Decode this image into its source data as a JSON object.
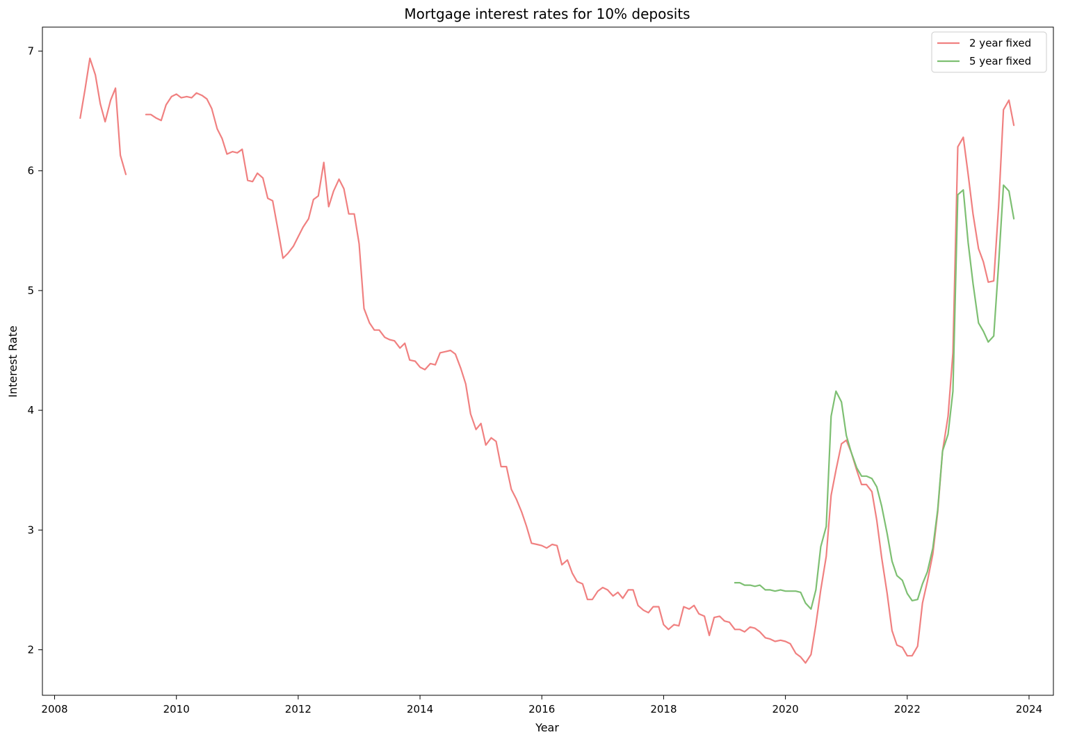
{
  "chart_data": {
    "type": "line",
    "title": "Mortgage interest rates for 10% deposits",
    "xlabel": "Year",
    "ylabel": "Interest Rate",
    "xlim": [
      2007.8,
      2024.4
    ],
    "ylim": [
      1.62,
      7.2
    ],
    "xticks": [
      2008,
      2010,
      2012,
      2014,
      2016,
      2018,
      2020,
      2022,
      2024
    ],
    "xtick_labels": [
      "2008",
      "2010",
      "2012",
      "2014",
      "2016",
      "2018",
      "2020",
      "2022",
      "2024"
    ],
    "yticks": [
      2,
      3,
      4,
      5,
      6,
      7
    ],
    "ytick_labels": [
      "2",
      "3",
      "4",
      "5",
      "6",
      "7"
    ],
    "grid": false,
    "legend": {
      "position": "top-right"
    },
    "series": [
      {
        "name": "2 year fixed",
        "color": "#f08080",
        "segments": [
          [
            [
              2008.42,
              6.44
            ],
            [
              2008.5,
              6.68
            ],
            [
              2008.58,
              6.94
            ],
            [
              2008.67,
              6.8
            ],
            [
              2008.75,
              6.56
            ],
            [
              2008.83,
              6.41
            ],
            [
              2008.92,
              6.59
            ],
            [
              2009.0,
              6.69
            ],
            [
              2009.08,
              6.13
            ],
            [
              2009.17,
              5.97
            ]
          ],
          [
            [
              2009.5,
              6.47
            ],
            [
              2009.58,
              6.47
            ],
            [
              2009.67,
              6.44
            ],
            [
              2009.75,
              6.42
            ],
            [
              2009.83,
              6.55
            ],
            [
              2009.92,
              6.62
            ],
            [
              2010.0,
              6.64
            ],
            [
              2010.08,
              6.61
            ],
            [
              2010.17,
              6.62
            ],
            [
              2010.25,
              6.61
            ],
            [
              2010.33,
              6.65
            ],
            [
              2010.42,
              6.63
            ],
            [
              2010.5,
              6.6
            ],
            [
              2010.58,
              6.52
            ],
            [
              2010.67,
              6.35
            ],
            [
              2010.75,
              6.27
            ],
            [
              2010.83,
              6.14
            ],
            [
              2010.92,
              6.16
            ],
            [
              2011.0,
              6.15
            ],
            [
              2011.08,
              6.18
            ],
            [
              2011.17,
              5.92
            ],
            [
              2011.25,
              5.91
            ],
            [
              2011.33,
              5.98
            ],
            [
              2011.42,
              5.94
            ],
            [
              2011.5,
              5.77
            ],
            [
              2011.58,
              5.75
            ],
            [
              2011.67,
              5.5
            ],
            [
              2011.75,
              5.27
            ],
            [
              2011.83,
              5.31
            ],
            [
              2011.92,
              5.37
            ],
            [
              2012.0,
              5.45
            ],
            [
              2012.08,
              5.53
            ],
            [
              2012.17,
              5.6
            ],
            [
              2012.25,
              5.76
            ],
            [
              2012.33,
              5.79
            ],
            [
              2012.42,
              6.07
            ],
            [
              2012.5,
              5.7
            ],
            [
              2012.58,
              5.83
            ],
            [
              2012.67,
              5.93
            ],
            [
              2012.75,
              5.85
            ],
            [
              2012.83,
              5.64
            ],
            [
              2012.92,
              5.64
            ],
            [
              2013.0,
              5.39
            ],
            [
              2013.08,
              4.85
            ],
            [
              2013.17,
              4.73
            ],
            [
              2013.25,
              4.67
            ],
            [
              2013.33,
              4.67
            ],
            [
              2013.42,
              4.61
            ],
            [
              2013.5,
              4.59
            ],
            [
              2013.58,
              4.58
            ],
            [
              2013.67,
              4.52
            ],
            [
              2013.75,
              4.56
            ],
            [
              2013.83,
              4.42
            ],
            [
              2013.92,
              4.41
            ],
            [
              2014.0,
              4.36
            ],
            [
              2014.08,
              4.34
            ],
            [
              2014.17,
              4.39
            ],
            [
              2014.25,
              4.38
            ],
            [
              2014.33,
              4.48
            ],
            [
              2014.42,
              4.49
            ],
            [
              2014.5,
              4.5
            ],
            [
              2014.58,
              4.47
            ],
            [
              2014.67,
              4.35
            ],
            [
              2014.75,
              4.22
            ],
            [
              2014.83,
              3.97
            ],
            [
              2014.92,
              3.84
            ],
            [
              2015.0,
              3.89
            ],
            [
              2015.08,
              3.71
            ],
            [
              2015.17,
              3.77
            ],
            [
              2015.25,
              3.74
            ],
            [
              2015.33,
              3.53
            ],
            [
              2015.42,
              3.53
            ],
            [
              2015.5,
              3.34
            ],
            [
              2015.58,
              3.26
            ],
            [
              2015.67,
              3.15
            ],
            [
              2015.75,
              3.03
            ],
            [
              2015.83,
              2.89
            ],
            [
              2015.92,
              2.88
            ],
            [
              2016.0,
              2.87
            ],
            [
              2016.08,
              2.85
            ],
            [
              2016.17,
              2.88
            ],
            [
              2016.25,
              2.87
            ],
            [
              2016.33,
              2.71
            ],
            [
              2016.42,
              2.75
            ],
            [
              2016.5,
              2.64
            ],
            [
              2016.58,
              2.57
            ],
            [
              2016.67,
              2.55
            ],
            [
              2016.75,
              2.42
            ],
            [
              2016.83,
              2.42
            ],
            [
              2016.92,
              2.49
            ],
            [
              2017.0,
              2.52
            ],
            [
              2017.08,
              2.5
            ],
            [
              2017.17,
              2.45
            ],
            [
              2017.25,
              2.48
            ],
            [
              2017.33,
              2.43
            ],
            [
              2017.42,
              2.5
            ],
            [
              2017.5,
              2.5
            ],
            [
              2017.58,
              2.37
            ],
            [
              2017.67,
              2.33
            ],
            [
              2017.75,
              2.31
            ],
            [
              2017.83,
              2.36
            ],
            [
              2017.92,
              2.36
            ],
            [
              2018.0,
              2.21
            ],
            [
              2018.08,
              2.17
            ],
            [
              2018.17,
              2.21
            ],
            [
              2018.25,
              2.2
            ],
            [
              2018.33,
              2.36
            ],
            [
              2018.42,
              2.34
            ],
            [
              2018.5,
              2.37
            ],
            [
              2018.58,
              2.3
            ],
            [
              2018.67,
              2.28
            ],
            [
              2018.75,
              2.12
            ],
            [
              2018.83,
              2.27
            ],
            [
              2018.92,
              2.28
            ],
            [
              2019.0,
              2.24
            ],
            [
              2019.08,
              2.23
            ],
            [
              2019.17,
              2.17
            ],
            [
              2019.25,
              2.17
            ],
            [
              2019.33,
              2.15
            ],
            [
              2019.42,
              2.19
            ],
            [
              2019.5,
              2.18
            ],
            [
              2019.58,
              2.15
            ],
            [
              2019.67,
              2.1
            ],
            [
              2019.75,
              2.09
            ],
            [
              2019.83,
              2.07
            ],
            [
              2019.92,
              2.08
            ],
            [
              2020.0,
              2.07
            ],
            [
              2020.08,
              2.05
            ],
            [
              2020.17,
              1.97
            ],
            [
              2020.25,
              1.94
            ],
            [
              2020.33,
              1.89
            ],
            [
              2020.42,
              1.96
            ],
            [
              2020.5,
              2.21
            ],
            [
              2020.58,
              2.5
            ],
            [
              2020.67,
              2.78
            ],
            [
              2020.75,
              3.29
            ],
            [
              2020.83,
              3.5
            ],
            [
              2020.92,
              3.72
            ],
            [
              2021.0,
              3.75
            ],
            [
              2021.08,
              3.65
            ],
            [
              2021.17,
              3.5
            ],
            [
              2021.25,
              3.38
            ],
            [
              2021.33,
              3.38
            ],
            [
              2021.42,
              3.32
            ],
            [
              2021.5,
              3.08
            ],
            [
              2021.58,
              2.77
            ],
            [
              2021.67,
              2.47
            ],
            [
              2021.75,
              2.16
            ],
            [
              2021.83,
              2.04
            ],
            [
              2021.92,
              2.02
            ],
            [
              2022.0,
              1.95
            ],
            [
              2022.08,
              1.95
            ],
            [
              2022.17,
              2.03
            ],
            [
              2022.25,
              2.39
            ],
            [
              2022.33,
              2.57
            ],
            [
              2022.42,
              2.8
            ],
            [
              2022.5,
              3.15
            ],
            [
              2022.58,
              3.66
            ],
            [
              2022.67,
              3.95
            ],
            [
              2022.75,
              4.48
            ],
            [
              2022.83,
              6.2
            ],
            [
              2022.92,
              6.28
            ],
            [
              2023.0,
              5.97
            ],
            [
              2023.08,
              5.64
            ],
            [
              2023.17,
              5.35
            ],
            [
              2023.25,
              5.24
            ],
            [
              2023.33,
              5.07
            ],
            [
              2023.42,
              5.08
            ],
            [
              2023.5,
              5.7
            ],
            [
              2023.58,
              6.51
            ],
            [
              2023.67,
              6.59
            ],
            [
              2023.75,
              6.38
            ]
          ]
        ]
      },
      {
        "name": "5 year fixed",
        "color": "#7dbf72",
        "segments": [
          [
            [
              2019.17,
              2.56
            ],
            [
              2019.25,
              2.56
            ],
            [
              2019.33,
              2.54
            ],
            [
              2019.42,
              2.54
            ],
            [
              2019.5,
              2.53
            ],
            [
              2019.58,
              2.54
            ],
            [
              2019.67,
              2.5
            ],
            [
              2019.75,
              2.5
            ],
            [
              2019.83,
              2.49
            ],
            [
              2019.92,
              2.5
            ],
            [
              2020.0,
              2.49
            ],
            [
              2020.08,
              2.49
            ],
            [
              2020.17,
              2.49
            ],
            [
              2020.25,
              2.48
            ],
            [
              2020.33,
              2.39
            ],
            [
              2020.42,
              2.34
            ],
            [
              2020.5,
              2.5
            ],
            [
              2020.58,
              2.86
            ],
            [
              2020.67,
              3.03
            ],
            [
              2020.75,
              3.95
            ],
            [
              2020.83,
              4.16
            ],
            [
              2020.92,
              4.07
            ],
            [
              2021.0,
              3.79
            ],
            [
              2021.08,
              3.65
            ],
            [
              2021.17,
              3.52
            ],
            [
              2021.25,
              3.45
            ],
            [
              2021.33,
              3.45
            ],
            [
              2021.42,
              3.43
            ],
            [
              2021.5,
              3.36
            ],
            [
              2021.58,
              3.2
            ],
            [
              2021.67,
              2.97
            ],
            [
              2021.75,
              2.74
            ],
            [
              2021.83,
              2.62
            ],
            [
              2021.92,
              2.58
            ],
            [
              2022.0,
              2.47
            ],
            [
              2022.08,
              2.41
            ],
            [
              2022.17,
              2.42
            ],
            [
              2022.25,
              2.55
            ],
            [
              2022.33,
              2.65
            ],
            [
              2022.42,
              2.85
            ],
            [
              2022.5,
              3.17
            ],
            [
              2022.58,
              3.66
            ],
            [
              2022.67,
              3.8
            ],
            [
              2022.75,
              4.16
            ],
            [
              2022.83,
              5.8
            ],
            [
              2022.92,
              5.84
            ],
            [
              2023.0,
              5.4
            ],
            [
              2023.08,
              5.06
            ],
            [
              2023.17,
              4.73
            ],
            [
              2023.25,
              4.66
            ],
            [
              2023.33,
              4.57
            ],
            [
              2023.42,
              4.62
            ],
            [
              2023.5,
              5.22
            ],
            [
              2023.58,
              5.88
            ],
            [
              2023.67,
              5.83
            ],
            [
              2023.75,
              5.6
            ]
          ]
        ]
      }
    ]
  }
}
